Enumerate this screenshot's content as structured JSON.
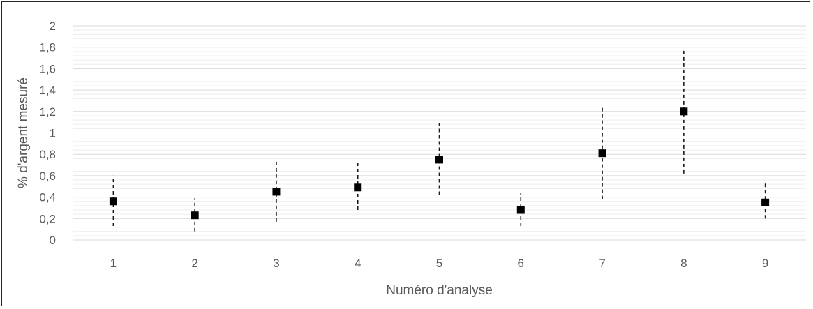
{
  "chart_data": {
    "type": "scatter",
    "title": "",
    "xlabel": "Numéro d'analyse",
    "ylabel": "% d'argent mesuré",
    "x_ticks": [
      "1",
      "2",
      "3",
      "4",
      "5",
      "6",
      "7",
      "8",
      "9"
    ],
    "y_ticks": [
      "0",
      "0,2",
      "0,4",
      "0,6",
      "0,8",
      "1",
      "1,2",
      "1,4",
      "1,6",
      "1,8",
      "2"
    ],
    "xlim": [
      0.5,
      9.5
    ],
    "ylim": [
      0,
      2
    ],
    "grid": true,
    "legend": "none",
    "marker": "square",
    "marker_color": "#000000",
    "error_bar_style": "dashed",
    "series": [
      {
        "x": [
          1,
          2,
          3,
          4,
          5,
          6,
          7,
          8,
          9
        ],
        "y": [
          0.36,
          0.23,
          0.45,
          0.49,
          0.75,
          0.28,
          0.81,
          1.2,
          0.35
        ],
        "error_low": [
          0.13,
          0.08,
          0.17,
          0.28,
          0.42,
          0.13,
          0.38,
          0.62,
          0.2
        ],
        "error_high": [
          0.6,
          0.39,
          0.74,
          0.72,
          1.09,
          0.44,
          1.24,
          1.79,
          0.54
        ]
      }
    ]
  }
}
